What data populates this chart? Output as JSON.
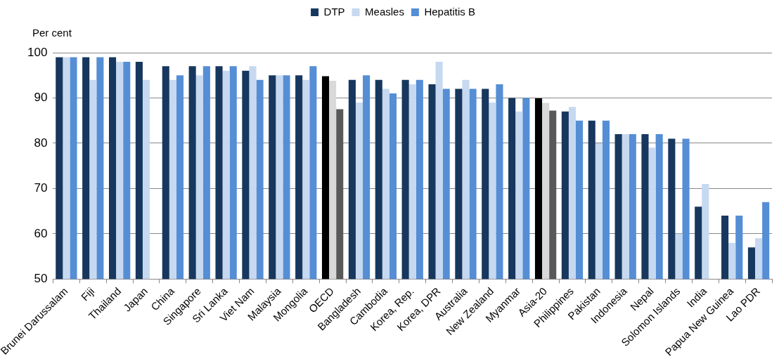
{
  "chart_data": {
    "type": "bar",
    "ylabel": "Per cent",
    "categories": [
      "Brunei Darussalam",
      "Fiji",
      "Thailand",
      "Japan",
      "China",
      "Singapore",
      "Sri Lanka",
      "Viet Nam",
      "Malaysia",
      "Mongolia",
      "OECD",
      "Bangladesh",
      "Cambodia",
      "Korea, Rep.",
      "Korea, DPR",
      "Australia",
      "New Zealand",
      "Myanmar",
      "Asia-20",
      "Philippines",
      "Pakistan",
      "Indonesia",
      "Nepal",
      "Solomon Islands",
      "India",
      "Papua New Guinea",
      "Lao PDR"
    ],
    "series": [
      {
        "name": "DTP",
        "color": "#17375e",
        "colors": [
          "#17375e",
          "#17375e",
          "#17375e",
          "#17375e",
          "#17375e",
          "#17375e",
          "#17375e",
          "#17375e",
          "#17375e",
          "#17375e",
          "#000000",
          "#17375e",
          "#17375e",
          "#17375e",
          "#17375e",
          "#17375e",
          "#17375e",
          "#17375e",
          "#000000",
          "#17375e",
          "#17375e",
          "#17375e",
          "#17375e",
          "#17375e",
          "#17375e",
          "#17375e",
          "#17375e"
        ],
        "values": [
          99,
          99,
          99,
          98,
          97,
          97,
          97,
          96,
          95,
          95,
          94.8,
          94,
          94,
          94,
          93,
          92,
          92,
          90,
          89.9,
          87,
          85,
          82,
          82,
          81,
          66,
          64,
          57
        ]
      },
      {
        "name": "Measles",
        "color": "#c6d9f1",
        "colors": [
          "#c6d9f1",
          "#c6d9f1",
          "#c6d9f1",
          "#c6d9f1",
          "#c6d9f1",
          "#c6d9f1",
          "#c6d9f1",
          "#c6d9f1",
          "#c6d9f1",
          "#c6d9f1",
          "#d9d9d9",
          "#c6d9f1",
          "#c6d9f1",
          "#c6d9f1",
          "#c6d9f1",
          "#c6d9f1",
          "#c6d9f1",
          "#c6d9f1",
          "#d9d9d9",
          "#c6d9f1",
          "#c6d9f1",
          "#c6d9f1",
          "#c6d9f1",
          "#c6d9f1",
          "#c6d9f1",
          "#c6d9f1",
          "#c6d9f1"
        ],
        "values": [
          99,
          94,
          98,
          94,
          94,
          95,
          96,
          97,
          95,
          94,
          93.8,
          89,
          92,
          93,
          98,
          94,
          89,
          87,
          88.9,
          88,
          80,
          82,
          79,
          60,
          71,
          58,
          59
        ]
      },
      {
        "name": "Hepatitis B",
        "color": "#558ed5",
        "colors": [
          "#558ed5",
          "#558ed5",
          "#558ed5",
          "#558ed5",
          "#558ed5",
          "#558ed5",
          "#558ed5",
          "#558ed5",
          "#558ed5",
          "#558ed5",
          "#595959",
          "#558ed5",
          "#558ed5",
          "#558ed5",
          "#558ed5",
          "#558ed5",
          "#558ed5",
          "#558ed5",
          "#595959",
          "#558ed5",
          "#558ed5",
          "#558ed5",
          "#558ed5",
          "#558ed5",
          "#558ed5",
          "#558ed5",
          "#558ed5"
        ],
        "values": [
          99,
          99,
          98,
          null,
          95,
          97,
          97,
          94,
          95,
          97,
          87.5,
          95,
          91,
          94,
          92,
          92,
          93,
          90,
          87.2,
          85,
          85,
          82,
          82,
          81,
          null,
          64,
          67
        ]
      }
    ],
    "ylim": [
      50,
      100
    ],
    "yticks": [
      50,
      60,
      70,
      80,
      90,
      100
    ],
    "grid": "y",
    "legend": "top"
  }
}
